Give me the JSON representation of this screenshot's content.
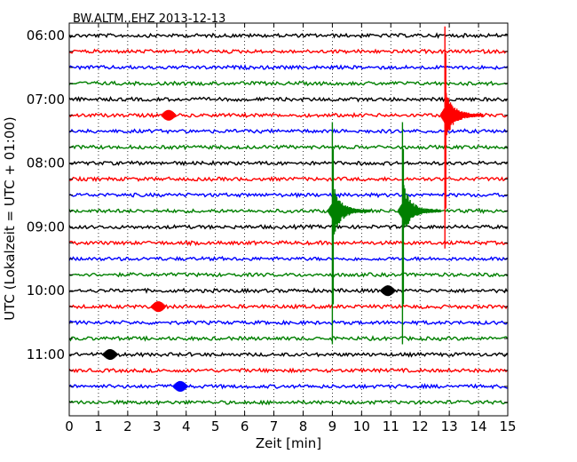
{
  "chart_data": {
    "type": "line",
    "title": "BW.ALTM..EHZ 2013-12-13",
    "xlabel": "Zeit  [min]",
    "ylabel": "UTC (Lokalzeit = UTC + 01:00)",
    "xlim": [
      0,
      15
    ],
    "x_ticks": [
      0,
      1,
      2,
      3,
      4,
      5,
      6,
      7,
      8,
      9,
      10,
      11,
      12,
      13,
      14,
      15
    ],
    "y_tick_labels": [
      "06:00",
      "07:00",
      "08:00",
      "09:00",
      "10:00",
      "11:00"
    ],
    "grid": "vertical dotted",
    "trace_interval_min": 15,
    "trace_colors": [
      "#000000",
      "#ff0000",
      "#0000ff",
      "#008000"
    ],
    "traces": [
      "06:00",
      "06:15",
      "06:30",
      "06:45",
      "07:00",
      "07:15",
      "07:30",
      "07:45",
      "08:00",
      "08:15",
      "08:30",
      "08:45",
      "09:00",
      "09:15",
      "09:30",
      "09:45",
      "10:00",
      "10:15",
      "10:30",
      "10:45",
      "11:00",
      "11:15",
      "11:30",
      "11:45"
    ],
    "events": [
      {
        "time": "07:15",
        "minute": 12.85,
        "color": "#ff0000",
        "amplitude": "large"
      },
      {
        "time": "08:45",
        "minute": 9.0,
        "color": "#008000",
        "amplitude": "large"
      },
      {
        "time": "08:45",
        "minute": 11.4,
        "color": "#008000",
        "amplitude": "large"
      },
      {
        "time": "07:15",
        "minute": 3.4,
        "color": "#ff0000",
        "amplitude": "small"
      },
      {
        "time": "10:00",
        "minute": 10.9,
        "color": "#000000",
        "amplitude": "small"
      },
      {
        "time": "10:15",
        "minute": 3.05,
        "color": "#ff0000",
        "amplitude": "small"
      },
      {
        "time": "11:00",
        "minute": 1.4,
        "color": "#000000",
        "amplitude": "small"
      },
      {
        "time": "11:30",
        "minute": 3.8,
        "color": "#0000ff",
        "amplitude": "small"
      }
    ]
  }
}
